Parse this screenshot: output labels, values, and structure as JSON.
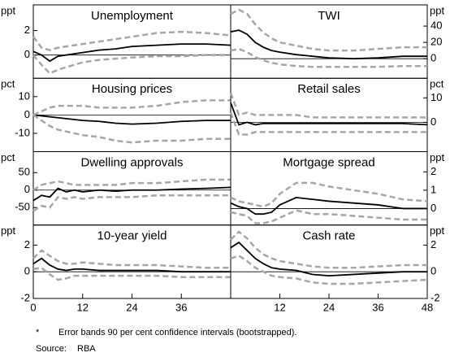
{
  "chart_data": [
    {
      "type": "line",
      "title": "Unemployment",
      "unit": "ppt",
      "side": "left",
      "x": [
        0,
        2,
        4,
        6,
        8,
        10,
        12,
        16,
        20,
        24,
        30,
        36,
        42,
        48
      ],
      "xlim": [
        0,
        48
      ],
      "ylim": [
        -1.9,
        4.1
      ],
      "yticks": [
        0,
        2
      ],
      "zero_line": true,
      "series": [
        {
          "color": "#000000",
          "style": "solid",
          "values": [
            0.3,
            0,
            -0.5,
            -0.1,
            0,
            0.1,
            0.2,
            0.4,
            0.5,
            0.7,
            0.8,
            0.9,
            0.9,
            0.8
          ]
        },
        {
          "color": "#a6a6a6",
          "style": "dashed",
          "values": [
            1.5,
            0.6,
            0.4,
            0.6,
            0.7,
            0.8,
            0.9,
            1.1,
            1.3,
            1.5,
            1.8,
            1.9,
            1.8,
            1.6
          ]
        },
        {
          "color": "#a6a6a6",
          "style": "dashed",
          "values": [
            0,
            -0.8,
            -1.5,
            -1.2,
            -1.0,
            -0.8,
            -0.6,
            -0.4,
            -0.3,
            -0.2,
            -0.1,
            -0.1,
            0,
            0
          ]
        }
      ]
    },
    {
      "type": "line",
      "title": "TWI",
      "unit": "ppt",
      "side": "right",
      "x": [
        0,
        2,
        4,
        6,
        8,
        10,
        12,
        16,
        20,
        24,
        30,
        36,
        42,
        48
      ],
      "xlim": [
        0,
        48
      ],
      "ylim": [
        -24,
        66
      ],
      "yticks": [
        0,
        20,
        40
      ],
      "zero_line": true,
      "series": [
        {
          "color": "#000000",
          "style": "solid",
          "values": [
            33,
            35,
            30,
            20,
            14,
            10,
            8,
            5,
            3,
            1,
            0,
            1,
            3,
            3
          ]
        },
        {
          "color": "#a6a6a6",
          "style": "dashed",
          "values": [
            55,
            60,
            55,
            42,
            32,
            25,
            20,
            16,
            12,
            10,
            10,
            12,
            14,
            14
          ]
        },
        {
          "color": "#a6a6a6",
          "style": "dashed",
          "values": [
            10,
            12,
            8,
            2,
            -2,
            -5,
            -7,
            -9,
            -10,
            -10,
            -10,
            -10,
            -9,
            -9
          ]
        }
      ]
    },
    {
      "type": "line",
      "title": "Housing prices",
      "unit": "pct",
      "side": "left",
      "x": [
        0,
        2,
        4,
        6,
        8,
        10,
        12,
        16,
        20,
        24,
        30,
        36,
        42,
        48
      ],
      "xlim": [
        0,
        48
      ],
      "ylim": [
        -20,
        20
      ],
      "yticks": [
        -10,
        0,
        10
      ],
      "zero_line": true,
      "series": [
        {
          "color": "#000000",
          "style": "solid",
          "values": [
            0,
            -0.5,
            -1,
            -1.5,
            -2,
            -2.5,
            -3,
            -3.5,
            -4.5,
            -5,
            -4.5,
            -3.5,
            -3,
            -3
          ]
        },
        {
          "color": "#a6a6a6",
          "style": "dashed",
          "values": [
            0,
            2,
            4,
            5,
            5,
            5,
            5,
            4,
            4,
            4,
            5,
            7,
            8,
            8
          ]
        },
        {
          "color": "#a6a6a6",
          "style": "dashed",
          "values": [
            0,
            -3,
            -6,
            -8,
            -9,
            -10,
            -11,
            -12,
            -14,
            -15,
            -14,
            -14,
            -13,
            -13
          ]
        }
      ]
    },
    {
      "type": "line",
      "title": "Retail sales",
      "unit": "pct",
      "side": "right",
      "x": [
        0,
        2,
        4,
        6,
        8,
        10,
        12,
        16,
        20,
        24,
        30,
        36,
        42,
        48
      ],
      "xlim": [
        0,
        48
      ],
      "ylim": [
        -12,
        18
      ],
      "yticks": [
        0,
        10
      ],
      "zero_line": true,
      "series": [
        {
          "color": "#000000",
          "style": "solid",
          "values": [
            8,
            -1,
            0,
            -1,
            -0.5,
            -0.5,
            -0.5,
            -0.5,
            -0.5,
            -0.5,
            -0.5,
            -0.5,
            -0.5,
            -1
          ]
        },
        {
          "color": "#a6a6a6",
          "style": "dashed",
          "values": [
            12,
            3,
            4,
            3,
            3,
            3,
            3,
            3,
            2,
            2,
            2,
            2,
            2,
            2
          ]
        },
        {
          "color": "#a6a6a6",
          "style": "dashed",
          "values": [
            4,
            -5,
            -5,
            -4,
            -4,
            -4,
            -4,
            -4,
            -4,
            -4,
            -4,
            -4,
            -4,
            -4
          ]
        }
      ]
    },
    {
      "type": "line",
      "title": "Dwelling approvals",
      "unit": "pct",
      "side": "left",
      "x": [
        0,
        2,
        4,
        6,
        8,
        10,
        12,
        16,
        20,
        24,
        30,
        36,
        42,
        48
      ],
      "xlim": [
        0,
        48
      ],
      "ylim": [
        -100,
        110
      ],
      "yticks": [
        -50,
        0,
        50
      ],
      "zero_line": true,
      "series": [
        {
          "color": "#000000",
          "style": "solid",
          "values": [
            -30,
            -15,
            -20,
            5,
            -5,
            0,
            -5,
            0,
            -3,
            0,
            0,
            3,
            5,
            8
          ]
        },
        {
          "color": "#a6a6a6",
          "style": "dashed",
          "values": [
            0,
            15,
            20,
            25,
            20,
            15,
            15,
            15,
            15,
            20,
            20,
            25,
            30,
            30
          ]
        },
        {
          "color": "#a6a6a6",
          "style": "dashed",
          "values": [
            -60,
            -45,
            -50,
            -20,
            -25,
            -20,
            -25,
            -20,
            -20,
            -20,
            -15,
            -15,
            -15,
            -15
          ]
        }
      ]
    },
    {
      "type": "line",
      "title": "Mortgage spread",
      "unit": "ppt",
      "side": "right",
      "x": [
        0,
        2,
        4,
        6,
        8,
        10,
        12,
        16,
        20,
        24,
        30,
        36,
        42,
        48
      ],
      "xlim": [
        0,
        48
      ],
      "ylim": [
        -0.9,
        3.1
      ],
      "yticks": [
        0,
        1,
        2
      ],
      "zero_line": true,
      "series": [
        {
          "color": "#000000",
          "style": "solid",
          "values": [
            0.3,
            0.1,
            0,
            -0.3,
            -0.3,
            -0.2,
            0.2,
            0.6,
            0.5,
            0.4,
            0.3,
            0.2,
            0,
            0
          ]
        },
        {
          "color": "#a6a6a6",
          "style": "dashed",
          "values": [
            0.6,
            0.4,
            0.3,
            0.2,
            0.1,
            0.3,
            0.8,
            1.4,
            1.4,
            1.2,
            1.0,
            0.8,
            0.5,
            0.4
          ]
        },
        {
          "color": "#a6a6a6",
          "style": "dashed",
          "values": [
            -0.2,
            -0.3,
            -0.4,
            -0.8,
            -0.8,
            -0.7,
            -0.5,
            -0.1,
            -0.3,
            -0.3,
            -0.4,
            -0.5,
            -0.6,
            -0.6
          ]
        }
      ]
    },
    {
      "type": "line",
      "title": "10-year yield",
      "unit": "ppt",
      "side": "left",
      "x": [
        0,
        2,
        4,
        6,
        8,
        10,
        12,
        16,
        20,
        24,
        30,
        36,
        42,
        48
      ],
      "xlim": [
        0,
        48
      ],
      "ylim": [
        -2,
        3.5
      ],
      "yticks": [
        -2,
        0,
        2
      ],
      "xticks": [
        0,
        12,
        24,
        36
      ],
      "zero_line": true,
      "series": [
        {
          "color": "#000000",
          "style": "solid",
          "values": [
            0.6,
            1.0,
            0.5,
            0.2,
            0.1,
            0.2,
            0.2,
            0.1,
            0.1,
            0.1,
            0.1,
            0,
            0,
            0
          ]
        },
        {
          "color": "#a6a6a6",
          "style": "dashed",
          "values": [
            1.0,
            1.6,
            1.2,
            0.8,
            0.6,
            0.6,
            0.7,
            0.6,
            0.5,
            0.5,
            0.5,
            0.4,
            0.3,
            0.3
          ]
        },
        {
          "color": "#a6a6a6",
          "style": "dashed",
          "values": [
            0.2,
            0.3,
            -0.2,
            -0.6,
            -0.5,
            -0.3,
            -0.3,
            -0.3,
            -0.3,
            -0.3,
            -0.3,
            -0.4,
            -0.4,
            -0.4
          ]
        }
      ]
    },
    {
      "type": "line",
      "title": "Cash rate",
      "unit": "ppt",
      "side": "right",
      "x": [
        0,
        2,
        4,
        6,
        8,
        10,
        12,
        16,
        20,
        24,
        30,
        36,
        42,
        48
      ],
      "xlim": [
        0,
        48
      ],
      "ylim": [
        -2,
        3.5
      ],
      "yticks": [
        -2,
        0,
        2
      ],
      "xticks": [
        12,
        24,
        36,
        48
      ],
      "zero_line": true,
      "series": [
        {
          "color": "#000000",
          "style": "solid",
          "values": [
            1.8,
            2.2,
            1.6,
            1.0,
            0.6,
            0.3,
            0.2,
            0.1,
            -0.2,
            -0.3,
            -0.2,
            -0.1,
            0,
            0
          ]
        },
        {
          "color": "#a6a6a6",
          "style": "dashed",
          "values": [
            2.4,
            3.0,
            2.5,
            1.8,
            1.3,
            1.0,
            0.8,
            0.6,
            0.4,
            0.3,
            0.3,
            0.4,
            0.5,
            0.5
          ]
        },
        {
          "color": "#a6a6a6",
          "style": "dashed",
          "values": [
            1.0,
            1.2,
            0.8,
            0.3,
            0,
            -0.3,
            -0.4,
            -0.5,
            -0.8,
            -0.9,
            -0.9,
            -0.8,
            -0.7,
            -0.6
          ]
        }
      ]
    }
  ],
  "footnote": {
    "marker": "*",
    "text": "Error bands 90 per cent confidence intervals (bootstrapped)."
  },
  "source": {
    "label": "Source:",
    "text": "RBA"
  }
}
